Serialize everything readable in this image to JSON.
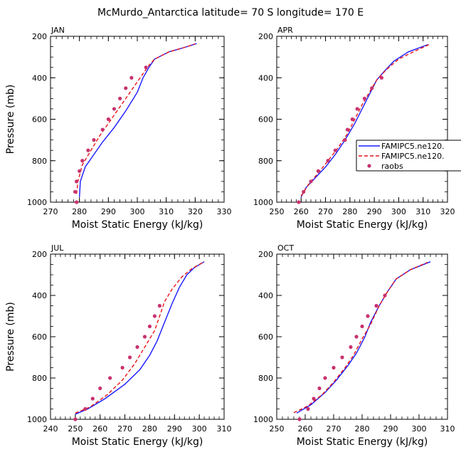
{
  "title": "McMurdo_Antarctica  latitude= 70 S longitude= 170 E",
  "colors": {
    "model1": "#1a1aff",
    "model2": "#e8141a",
    "obs": "#c8326e",
    "axis": "#000000"
  },
  "legend": {
    "entries": [
      {
        "label": "FAMIPC5.ne120.",
        "style": "solid-line",
        "color": "#1a1aff"
      },
      {
        "label": "FAMIPC5.ne120.",
        "style": "dashed-line",
        "color": "#e8141a"
      },
      {
        "label": "raobs",
        "style": "dot",
        "color": "#c8326e"
      }
    ],
    "placement": "right-of-APR-panel"
  },
  "chart_data": [
    {
      "type": "line",
      "month": "JAN",
      "xlabel": "Moist Static Energy (kJ/kg)",
      "ylabel": "Pressure (mb)",
      "xlim": [
        270,
        330
      ],
      "xticks": [
        270,
        280,
        290,
        300,
        310,
        320,
        330
      ],
      "ylim": [
        200,
        1000
      ],
      "yticks": [
        200,
        400,
        600,
        800,
        1000
      ],
      "y_inverted": true,
      "series": [
        {
          "style": "solid",
          "color": "#1a1aff",
          "points": [
            [
              280,
              975
            ],
            [
              280.3,
              900
            ],
            [
              282,
              830
            ],
            [
              285,
              770
            ],
            [
              288,
              710
            ],
            [
              292,
              640
            ],
            [
              296,
              560
            ],
            [
              300,
              470
            ],
            [
              302,
              400
            ],
            [
              304,
              350
            ],
            [
              306,
              310
            ],
            [
              311,
              275
            ],
            [
              316,
              255
            ],
            [
              320.5,
              235
            ]
          ]
        },
        {
          "style": "dashed",
          "color": "#e8141a",
          "points": [
            [
              279,
              960
            ],
            [
              279.5,
              900
            ],
            [
              281,
              820
            ],
            [
              284,
              750
            ],
            [
              287,
              680
            ],
            [
              291,
              600
            ],
            [
              295,
              520
            ],
            [
              299,
              440
            ],
            [
              302,
              380
            ],
            [
              304,
              340
            ],
            [
              306,
              310
            ],
            [
              311,
              275
            ],
            [
              316,
              255
            ],
            [
              320,
              237
            ]
          ]
        },
        {
          "style": "dots",
          "color": "#c8326e",
          "points": [
            [
              279,
              1000
            ],
            [
              278.5,
              950
            ],
            [
              279,
              900
            ],
            [
              280,
              850
            ],
            [
              281,
              800
            ],
            [
              283,
              750
            ],
            [
              285,
              700
            ],
            [
              288,
              650
            ],
            [
              290,
              600
            ],
            [
              292,
              550
            ],
            [
              294,
              500
            ],
            [
              296,
              450
            ],
            [
              298,
              400
            ],
            [
              303,
              350
            ]
          ]
        }
      ]
    },
    {
      "type": "line",
      "month": "APR",
      "xlabel": "Moist Static Energy (kJ/kg)",
      "ylabel": "",
      "xlim": [
        250,
        320
      ],
      "xticks": [
        250,
        260,
        270,
        280,
        290,
        300,
        310,
        320
      ],
      "ylim": [
        200,
        1000
      ],
      "yticks": [
        200,
        400,
        600,
        800,
        1000
      ],
      "y_inverted": true,
      "series": [
        {
          "style": "solid",
          "color": "#1a1aff",
          "points": [
            [
              260,
              975
            ],
            [
              262,
              930
            ],
            [
              266,
              880
            ],
            [
              270,
              830
            ],
            [
              274,
              770
            ],
            [
              278,
              700
            ],
            [
              282,
              620
            ],
            [
              285,
              550
            ],
            [
              288,
              480
            ],
            [
              291,
              410
            ],
            [
              294,
              370
            ],
            [
              298,
              320
            ],
            [
              304,
              275
            ],
            [
              312,
              240
            ]
          ]
        },
        {
          "style": "dashed",
          "color": "#e8141a",
          "points": [
            [
              260,
              970
            ],
            [
              263,
              915
            ],
            [
              267,
              860
            ],
            [
              271,
              800
            ],
            [
              275,
              740
            ],
            [
              279,
              670
            ],
            [
              282,
              600
            ],
            [
              285,
              530
            ],
            [
              288,
              470
            ],
            [
              291,
              410
            ],
            [
              295,
              360
            ],
            [
              300,
              310
            ],
            [
              306,
              275
            ],
            [
              313,
              237
            ]
          ]
        },
        {
          "style": "dots",
          "color": "#c8326e",
          "points": [
            [
              259,
              1000
            ],
            [
              261,
              950
            ],
            [
              264,
              900
            ],
            [
              267,
              850
            ],
            [
              271,
              800
            ],
            [
              274,
              750
            ],
            [
              278,
              700
            ],
            [
              279,
              650
            ],
            [
              281,
              600
            ],
            [
              283,
              550
            ],
            [
              286,
              500
            ],
            [
              289,
              450
            ],
            [
              293,
              400
            ]
          ]
        }
      ]
    },
    {
      "type": "line",
      "month": "JUL",
      "xlabel": "Moist Static Energy (kJ/kg)",
      "ylabel": "Pressure (mb)",
      "xlim": [
        240,
        310
      ],
      "xticks": [
        240,
        250,
        260,
        270,
        280,
        290,
        300,
        310
      ],
      "ylim": [
        200,
        1000
      ],
      "yticks": [
        200,
        400,
        600,
        800,
        1000
      ],
      "y_inverted": true,
      "series": [
        {
          "style": "solid",
          "color": "#1a1aff",
          "points": [
            [
              250,
              975
            ],
            [
              255,
              950
            ],
            [
              262,
              900
            ],
            [
              270,
              830
            ],
            [
              276,
              760
            ],
            [
              280,
              690
            ],
            [
              283,
              620
            ],
            [
              286,
              530
            ],
            [
              289,
              440
            ],
            [
              292,
              360
            ],
            [
              295,
              300
            ],
            [
              298,
              265
            ],
            [
              302,
              237
            ]
          ]
        },
        {
          "style": "dashed",
          "color": "#e8141a",
          "points": [
            [
              250,
              970
            ],
            [
              256,
              940
            ],
            [
              263,
              880
            ],
            [
              269,
              810
            ],
            [
              274,
              730
            ],
            [
              278,
              650
            ],
            [
              282,
              570
            ],
            [
              284,
              500
            ],
            [
              286,
              430
            ],
            [
              289,
              370
            ],
            [
              293,
              310
            ],
            [
              297,
              270
            ],
            [
              302,
              237
            ]
          ]
        },
        {
          "style": "dots",
          "color": "#c8326e",
          "points": [
            [
              250,
              1000
            ],
            [
              254,
              950
            ],
            [
              257,
              900
            ],
            [
              260,
              850
            ],
            [
              264,
              800
            ],
            [
              269,
              750
            ],
            [
              272,
              700
            ],
            [
              275,
              650
            ],
            [
              278,
              600
            ],
            [
              280,
              550
            ],
            [
              282,
              500
            ],
            [
              284,
              450
            ]
          ]
        }
      ]
    },
    {
      "type": "line",
      "month": "OCT",
      "xlabel": "Moist Static Energy (kJ/kg)",
      "ylabel": "",
      "xlim": [
        250,
        310
      ],
      "xticks": [
        250,
        260,
        270,
        280,
        290,
        300,
        310
      ],
      "ylim": [
        200,
        1000
      ],
      "yticks": [
        200,
        400,
        600,
        800,
        1000
      ],
      "y_inverted": true,
      "series": [
        {
          "style": "solid",
          "color": "#1a1aff",
          "points": [
            [
              257,
              970
            ],
            [
              262,
              930
            ],
            [
              267,
              870
            ],
            [
              271,
              810
            ],
            [
              275,
              740
            ],
            [
              278,
              680
            ],
            [
              281,
              600
            ],
            [
              283,
              530
            ],
            [
              286,
              450
            ],
            [
              289,
              380
            ],
            [
              292,
              320
            ],
            [
              297,
              275
            ],
            [
              304,
              237
            ]
          ]
        },
        {
          "style": "dashed",
          "color": "#e8141a",
          "points": [
            [
              256,
              968
            ],
            [
              261,
              935
            ],
            [
              266,
              880
            ],
            [
              270,
              820
            ],
            [
              274,
              750
            ],
            [
              277,
              690
            ],
            [
              280,
              610
            ],
            [
              283,
              540
            ],
            [
              286,
              450
            ],
            [
              289,
              380
            ],
            [
              292,
              320
            ],
            [
              297,
              275
            ],
            [
              303,
              240
            ]
          ]
        },
        {
          "style": "dots",
          "color": "#c8326e",
          "points": [
            [
              258,
              1000
            ],
            [
              261,
              950
            ],
            [
              263,
              900
            ],
            [
              265,
              850
            ],
            [
              267,
              800
            ],
            [
              270,
              750
            ],
            [
              273,
              700
            ],
            [
              276,
              650
            ],
            [
              278,
              600
            ],
            [
              280,
              550
            ],
            [
              282,
              500
            ],
            [
              285,
              450
            ],
            [
              288,
              400
            ]
          ]
        }
      ]
    }
  ]
}
